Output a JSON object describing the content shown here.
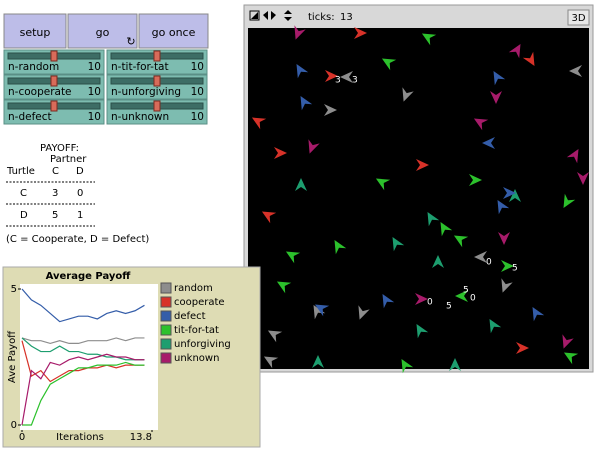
{
  "buttons": [
    "setup",
    "go",
    "go once"
  ],
  "sliders": [
    {
      "label": "n-random",
      "value": 10
    },
    {
      "label": "n-tit-for-tat",
      "value": 10
    },
    {
      "label": "n-cooperate",
      "value": 10
    },
    {
      "label": "n-unforgiving",
      "value": 10
    },
    {
      "label": "n-defect",
      "value": 10
    },
    {
      "label": "n-unknown",
      "value": 10
    }
  ],
  "payoff": {
    "title": "PAYOFF:",
    "partner": "Partner",
    "header": [
      "Turtle",
      "C",
      "D"
    ],
    "rows": [
      [
        "C",
        3,
        0
      ],
      [
        "D",
        5,
        1
      ]
    ],
    "note": "(C = Cooperate, D = Defect)"
  },
  "view": {
    "ticks_label": "ticks:",
    "ticks": 13,
    "button_3d": "3D",
    "labels": [
      "3",
      "3",
      "0",
      "5",
      "5",
      "0",
      "5",
      "0"
    ]
  },
  "chart_data": {
    "type": "line",
    "title": "Average Payoff",
    "y_label": "Ave Payoff",
    "x_label": "Iterations",
    "x": [
      0,
      1,
      2,
      3,
      4,
      5,
      6,
      7,
      8,
      9,
      10,
      11,
      12,
      13
    ],
    "xlim": [
      0,
      13.8
    ],
    "xticks": [
      0,
      13.8
    ],
    "ylim": [
      0,
      5
    ],
    "yticks": [
      0,
      5
    ],
    "series": [
      {
        "name": "random",
        "color": "#8d8d8d",
        "values": [
          3.2,
          3.1,
          3.1,
          3.0,
          3.1,
          3.0,
          3.0,
          3.1,
          3.1,
          3.1,
          3.2,
          3.1,
          3.2,
          3.2
        ]
      },
      {
        "name": "cooperate",
        "color": "#d73229",
        "values": [
          3.1,
          1.8,
          2.0,
          1.6,
          1.8,
          2.0,
          2.0,
          2.1,
          2.1,
          2.2,
          2.1,
          2.2,
          2.2,
          2.2
        ]
      },
      {
        "name": "defect",
        "color": "#345da9",
        "values": [
          5.0,
          4.6,
          4.4,
          4.1,
          3.8,
          3.9,
          4.0,
          4.0,
          3.9,
          4.1,
          4.2,
          4.1,
          4.2,
          4.4
        ]
      },
      {
        "name": "tit-for-tat",
        "color": "#2cc12c",
        "values": [
          0.0,
          0.0,
          0.9,
          1.5,
          1.7,
          1.9,
          2.1,
          2.1,
          2.2,
          2.2,
          2.2,
          2.3,
          2.2,
          2.2
        ]
      },
      {
        "name": "unforgiving",
        "color": "#1d9e6f",
        "values": [
          3.2,
          2.9,
          2.7,
          2.7,
          2.9,
          2.7,
          2.7,
          2.6,
          2.6,
          2.5,
          2.5,
          2.4,
          2.4,
          2.4
        ]
      },
      {
        "name": "unknown",
        "color": "#a71b6a",
        "values": [
          0.0,
          2.0,
          1.7,
          2.3,
          2.2,
          2.4,
          2.5,
          2.4,
          2.5,
          2.6,
          2.5,
          2.5,
          2.4,
          2.4
        ]
      }
    ]
  }
}
